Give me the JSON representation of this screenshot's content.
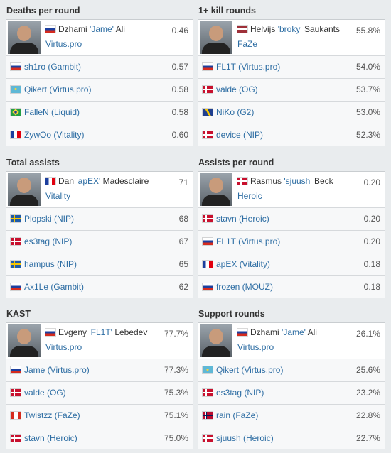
{
  "panels": [
    {
      "title": "Deaths per round",
      "leader": {
        "first": "Dzhami",
        "nick": "'Jame'",
        "last": "Ali",
        "team": "Virtus.pro",
        "value": "0.46"
      },
      "rows": [
        {
          "player": "sh1ro (Gambit)",
          "value": "0.57"
        },
        {
          "player": "Qikert (Virtus.pro)",
          "value": "0.58"
        },
        {
          "player": "FalleN (Liquid)",
          "value": "0.58"
        },
        {
          "player": "ZywOo (Vitality)",
          "value": "0.60"
        }
      ]
    },
    {
      "title": "1+ kill rounds",
      "leader": {
        "first": "Helvijs",
        "nick": "'broky'",
        "last": "Saukants",
        "team": "FaZe",
        "value": "55.8%"
      },
      "rows": [
        {
          "player": "FL1T (Virtus.pro)",
          "value": "54.0%"
        },
        {
          "player": "valde (OG)",
          "value": "53.7%"
        },
        {
          "player": "NiKo (G2)",
          "value": "53.0%"
        },
        {
          "player": "device (NIP)",
          "value": "52.3%"
        }
      ]
    },
    {
      "title": "Total assists",
      "leader": {
        "first": "Dan",
        "nick": "'apEX'",
        "last": "Madesclaire",
        "team": "Vitality",
        "value": "71"
      },
      "rows": [
        {
          "player": "Plopski (NIP)",
          "value": "68"
        },
        {
          "player": "es3tag (NIP)",
          "value": "67"
        },
        {
          "player": "hampus (NIP)",
          "value": "65"
        },
        {
          "player": "Ax1Le (Gambit)",
          "value": "62"
        }
      ]
    },
    {
      "title": "Assists per round",
      "leader": {
        "first": "Rasmus",
        "nick": "'sjuush'",
        "last": "Beck",
        "team": "Heroic",
        "value": "0.20"
      },
      "rows": [
        {
          "player": "stavn (Heroic)",
          "value": "0.20"
        },
        {
          "player": "FL1T (Virtus.pro)",
          "value": "0.20"
        },
        {
          "player": "apEX (Vitality)",
          "value": "0.18"
        },
        {
          "player": "frozen (MOUZ)",
          "value": "0.18"
        }
      ]
    },
    {
      "title": "KAST",
      "leader": {
        "first": "Evgeny",
        "nick": "'FL1T'",
        "last": "Lebedev",
        "team": "Virtus.pro",
        "value": "77.7%"
      },
      "rows": [
        {
          "player": "Jame (Virtus.pro)",
          "value": "77.3%"
        },
        {
          "player": "valde (OG)",
          "value": "75.3%"
        },
        {
          "player": "Twistzz (FaZe)",
          "value": "75.1%"
        },
        {
          "player": "stavn (Heroic)",
          "value": "75.0%"
        }
      ]
    },
    {
      "title": "Support rounds",
      "leader": {
        "first": "Dzhami",
        "nick": "'Jame'",
        "last": "Ali",
        "team": "Virtus.pro",
        "value": "26.1%"
      },
      "rows": [
        {
          "player": "Qikert (Virtus.pro)",
          "value": "25.6%"
        },
        {
          "player": "es3tag (NIP)",
          "value": "23.2%"
        },
        {
          "player": "rain (FaZe)",
          "value": "22.8%"
        },
        {
          "player": "sjuush (Heroic)",
          "value": "22.7%"
        }
      ]
    }
  ]
}
